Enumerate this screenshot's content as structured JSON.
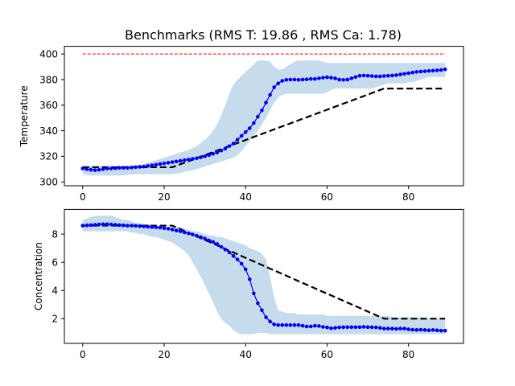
{
  "figure": {
    "title": "Benchmarks (RMS T: 19.86 , RMS Ca: 1.78)",
    "colors": {
      "series": "#0000ff",
      "band": "#c6dbec",
      "reference": "#000000",
      "limit": "#ff0000"
    }
  },
  "chart_data": [
    {
      "type": "line",
      "title": "",
      "xlabel": "",
      "ylabel": "Temperature",
      "xlim": [
        -4.5,
        93.5
      ],
      "ylim": [
        297,
        406
      ],
      "xticks": [
        0,
        20,
        40,
        60,
        80
      ],
      "yticks": [
        300,
        320,
        340,
        360,
        380,
        400
      ],
      "grid": false,
      "limit_line": {
        "y": 400,
        "x": [
          0,
          89
        ]
      },
      "reference_line": {
        "x": [
          0,
          22,
          74,
          89
        ],
        "y": [
          311.5,
          311.5,
          373,
          373
        ]
      },
      "series": {
        "x": [
          0,
          1,
          2,
          3,
          4,
          5,
          6,
          7,
          8,
          9,
          10,
          11,
          12,
          13,
          14,
          15,
          16,
          17,
          18,
          19,
          20,
          21,
          22,
          23,
          24,
          25,
          26,
          27,
          28,
          29,
          30,
          31,
          32,
          33,
          34,
          35,
          36,
          37,
          38,
          39,
          40,
          41,
          42,
          43,
          44,
          45,
          46,
          47,
          48,
          49,
          50,
          51,
          52,
          53,
          54,
          55,
          56,
          57,
          58,
          59,
          60,
          61,
          62,
          63,
          64,
          65,
          66,
          67,
          68,
          69,
          70,
          71,
          72,
          73,
          74,
          75,
          76,
          77,
          78,
          79,
          80,
          81,
          82,
          83,
          84,
          85,
          86,
          87,
          88,
          89
        ],
        "y": [
          310.5,
          310.0,
          309.5,
          309.2,
          309.5,
          310.0,
          310.5,
          310.5,
          310.7,
          311.0,
          311.0,
          311.0,
          311.2,
          311.5,
          311.8,
          312.0,
          312.5,
          313.0,
          313.5,
          314.0,
          314.5,
          315.0,
          315.5,
          316.0,
          316.5,
          317.0,
          317.5,
          318.0,
          318.5,
          319.2,
          320.0,
          321.0,
          322.0,
          323.0,
          324.5,
          326.0,
          328.0,
          330.0,
          333.0,
          336.0,
          339.0,
          342.0,
          346.0,
          351.0,
          356.0,
          362.0,
          368.0,
          374.0,
          377.0,
          379.0,
          379.8,
          380.0,
          380.0,
          379.8,
          380.0,
          380.2,
          380.5,
          380.5,
          381.0,
          381.5,
          381.8,
          381.5,
          381.0,
          380.0,
          379.8,
          380.0,
          381.0,
          382.0,
          383.0,
          383.2,
          383.0,
          382.8,
          382.5,
          382.5,
          382.8,
          383.0,
          383.2,
          383.5,
          384.0,
          384.5,
          385.0,
          385.5,
          386.0,
          386.3,
          386.5,
          386.8,
          387.0,
          387.2,
          387.5,
          388.0
        ],
        "band_upper": [
          312.5,
          312.5,
          312.5,
          312.5,
          312.5,
          312.5,
          312.5,
          312.5,
          312.5,
          312.5,
          312.5,
          312.5,
          313.0,
          313.0,
          313.5,
          314.0,
          315.0,
          316.0,
          317.0,
          318.0,
          319.0,
          320.0,
          321.0,
          322.0,
          323.0,
          324.0,
          325.0,
          326.5,
          328.0,
          330.5,
          333.0,
          336.0,
          340.0,
          345.0,
          352.0,
          360.0,
          369.0,
          376.0,
          380.0,
          383.0,
          386.0,
          389.0,
          392.0,
          395.0,
          395.0,
          395.0,
          394.0,
          390.0,
          388.0,
          388.0,
          390.0,
          392.0,
          394.0,
          395.0,
          395.0,
          395.0,
          395.0,
          395.0,
          395.0,
          394.0,
          393.0,
          393.0,
          393.0,
          393.0,
          393.0,
          393.0,
          393.0,
          393.0,
          393.0,
          393.0,
          393.0,
          393.0,
          393.0,
          393.0,
          393.0,
          393.0,
          393.0,
          393.0,
          393.0,
          393.0,
          393.0,
          393.0,
          393.0,
          393.0,
          393.0,
          393.0,
          393.0,
          393.0,
          393.0,
          393.0
        ],
        "band_lower": [
          306.0,
          305.5,
          305.0,
          305.0,
          305.0,
          305.0,
          305.0,
          305.0,
          305.0,
          305.0,
          305.0,
          305.5,
          306.0,
          306.0,
          306.0,
          306.0,
          306.0,
          306.0,
          306.0,
          306.0,
          306.0,
          306.0,
          306.0,
          306.5,
          307.0,
          308.0,
          308.5,
          309.0,
          310.0,
          311.0,
          312.0,
          313.0,
          314.0,
          315.0,
          316.0,
          317.0,
          318.0,
          319.0,
          321.0,
          324.0,
          328.0,
          332.0,
          336.0,
          340.0,
          345.0,
          350.0,
          356.0,
          362.0,
          366.0,
          368.0,
          369.0,
          369.0,
          369.0,
          369.0,
          369.0,
          369.0,
          369.0,
          369.0,
          369.0,
          369.0,
          370.0,
          372.0,
          373.0,
          373.0,
          373.0,
          373.0,
          373.0,
          373.0,
          373.0,
          373.0,
          373.0,
          373.0,
          374.0,
          375.0,
          376.0,
          377.0,
          377.0,
          377.0,
          377.0,
          377.0,
          378.0,
          378.0,
          379.0,
          380.0,
          381.0,
          382.0,
          382.0,
          382.0,
          382.0,
          382.0
        ]
      }
    },
    {
      "type": "line",
      "title": "",
      "xlabel": "",
      "ylabel": "Concentration",
      "xlim": [
        -4.5,
        93.5
      ],
      "ylim": [
        0.25,
        9.75
      ],
      "xticks": [
        0,
        20,
        40,
        60,
        80
      ],
      "yticks": [
        2,
        4,
        6,
        8
      ],
      "grid": false,
      "reference_line": {
        "x": [
          0,
          22,
          74,
          89
        ],
        "y": [
          8.6,
          8.6,
          2.0,
          2.0
        ]
      },
      "series": {
        "x": [
          0,
          1,
          2,
          3,
          4,
          5,
          6,
          7,
          8,
          9,
          10,
          11,
          12,
          13,
          14,
          15,
          16,
          17,
          18,
          19,
          20,
          21,
          22,
          23,
          24,
          25,
          26,
          27,
          28,
          29,
          30,
          31,
          32,
          33,
          34,
          35,
          36,
          37,
          38,
          39,
          40,
          41,
          42,
          43,
          44,
          45,
          46,
          47,
          48,
          49,
          50,
          51,
          52,
          53,
          54,
          55,
          56,
          57,
          58,
          59,
          60,
          61,
          62,
          63,
          64,
          65,
          66,
          67,
          68,
          69,
          70,
          71,
          72,
          73,
          74,
          75,
          76,
          77,
          78,
          79,
          80,
          81,
          82,
          83,
          84,
          85,
          86,
          87,
          88,
          89
        ],
        "y": [
          8.6,
          8.62,
          8.64,
          8.66,
          8.68,
          8.7,
          8.7,
          8.68,
          8.66,
          8.64,
          8.62,
          8.6,
          8.6,
          8.58,
          8.56,
          8.54,
          8.52,
          8.5,
          8.48,
          8.46,
          8.42,
          8.38,
          8.32,
          8.25,
          8.2,
          8.12,
          8.05,
          7.97,
          7.88,
          7.78,
          7.68,
          7.55,
          7.45,
          7.3,
          7.1,
          6.9,
          6.7,
          6.45,
          6.2,
          5.9,
          5.5,
          4.8,
          3.8,
          3.1,
          2.6,
          2.1,
          1.8,
          1.6,
          1.55,
          1.55,
          1.55,
          1.55,
          1.55,
          1.55,
          1.5,
          1.45,
          1.45,
          1.5,
          1.48,
          1.42,
          1.38,
          1.32,
          1.35,
          1.38,
          1.4,
          1.4,
          1.4,
          1.4,
          1.4,
          1.42,
          1.4,
          1.4,
          1.38,
          1.35,
          1.3,
          1.3,
          1.3,
          1.28,
          1.3,
          1.3,
          1.25,
          1.22,
          1.2,
          1.22,
          1.2,
          1.18,
          1.2,
          1.18,
          1.15,
          1.15
        ],
        "band_upper": [
          9.0,
          9.1,
          9.2,
          9.3,
          9.3,
          9.3,
          9.3,
          9.3,
          9.2,
          9.1,
          9.0,
          9.0,
          8.9,
          8.8,
          8.8,
          8.7,
          8.7,
          8.6,
          8.6,
          8.6,
          8.5,
          8.5,
          8.5,
          8.5,
          8.5,
          8.4,
          8.3,
          8.2,
          8.2,
          8.1,
          8.0,
          7.9,
          7.9,
          7.8,
          7.8,
          7.7,
          7.6,
          7.5,
          7.4,
          7.3,
          7.2,
          7.0,
          6.9,
          6.8,
          6.6,
          6.2,
          5.0,
          3.5,
          2.6,
          2.5,
          2.4,
          2.4,
          2.4,
          2.3,
          2.3,
          2.3,
          2.3,
          2.3,
          2.3,
          2.3,
          2.2,
          2.2,
          2.2,
          2.2,
          2.2,
          2.2,
          2.2,
          2.2,
          2.2,
          2.2,
          2.2,
          2.2,
          2.2,
          2.2,
          2.2,
          2.2,
          2.1,
          2.1,
          2.1,
          2.1,
          2.1,
          2.1,
          2.1,
          2.1,
          2.0,
          2.0,
          2.0,
          2.0,
          2.0,
          2.0
        ],
        "band_lower": [
          8.2,
          8.2,
          8.2,
          8.2,
          8.2,
          8.2,
          8.2,
          8.2,
          8.2,
          8.2,
          8.2,
          8.2,
          8.1,
          8.1,
          8.0,
          8.0,
          7.9,
          7.8,
          7.8,
          7.7,
          7.6,
          7.5,
          7.4,
          7.2,
          7.0,
          6.8,
          6.5,
          6.0,
          5.5,
          5.0,
          4.4,
          3.8,
          3.2,
          2.5,
          2.0,
          1.7,
          1.5,
          1.2,
          1.0,
          0.9,
          0.9,
          0.9,
          0.9,
          1.0,
          1.0,
          1.0,
          0.9,
          0.9,
          0.9,
          0.9,
          0.9,
          0.9,
          0.9,
          0.9,
          0.9,
          0.9,
          0.9,
          0.9,
          0.9,
          0.9,
          0.9,
          0.9,
          0.9,
          0.9,
          0.9,
          0.9,
          0.9,
          0.9,
          0.9,
          0.9,
          0.9,
          0.9,
          0.9,
          0.9,
          0.9,
          0.9,
          0.9,
          0.9,
          0.9,
          0.9,
          0.9,
          0.9,
          0.9,
          0.9,
          0.9,
          0.9,
          0.9,
          0.9,
          0.9,
          0.9
        ]
      }
    }
  ]
}
